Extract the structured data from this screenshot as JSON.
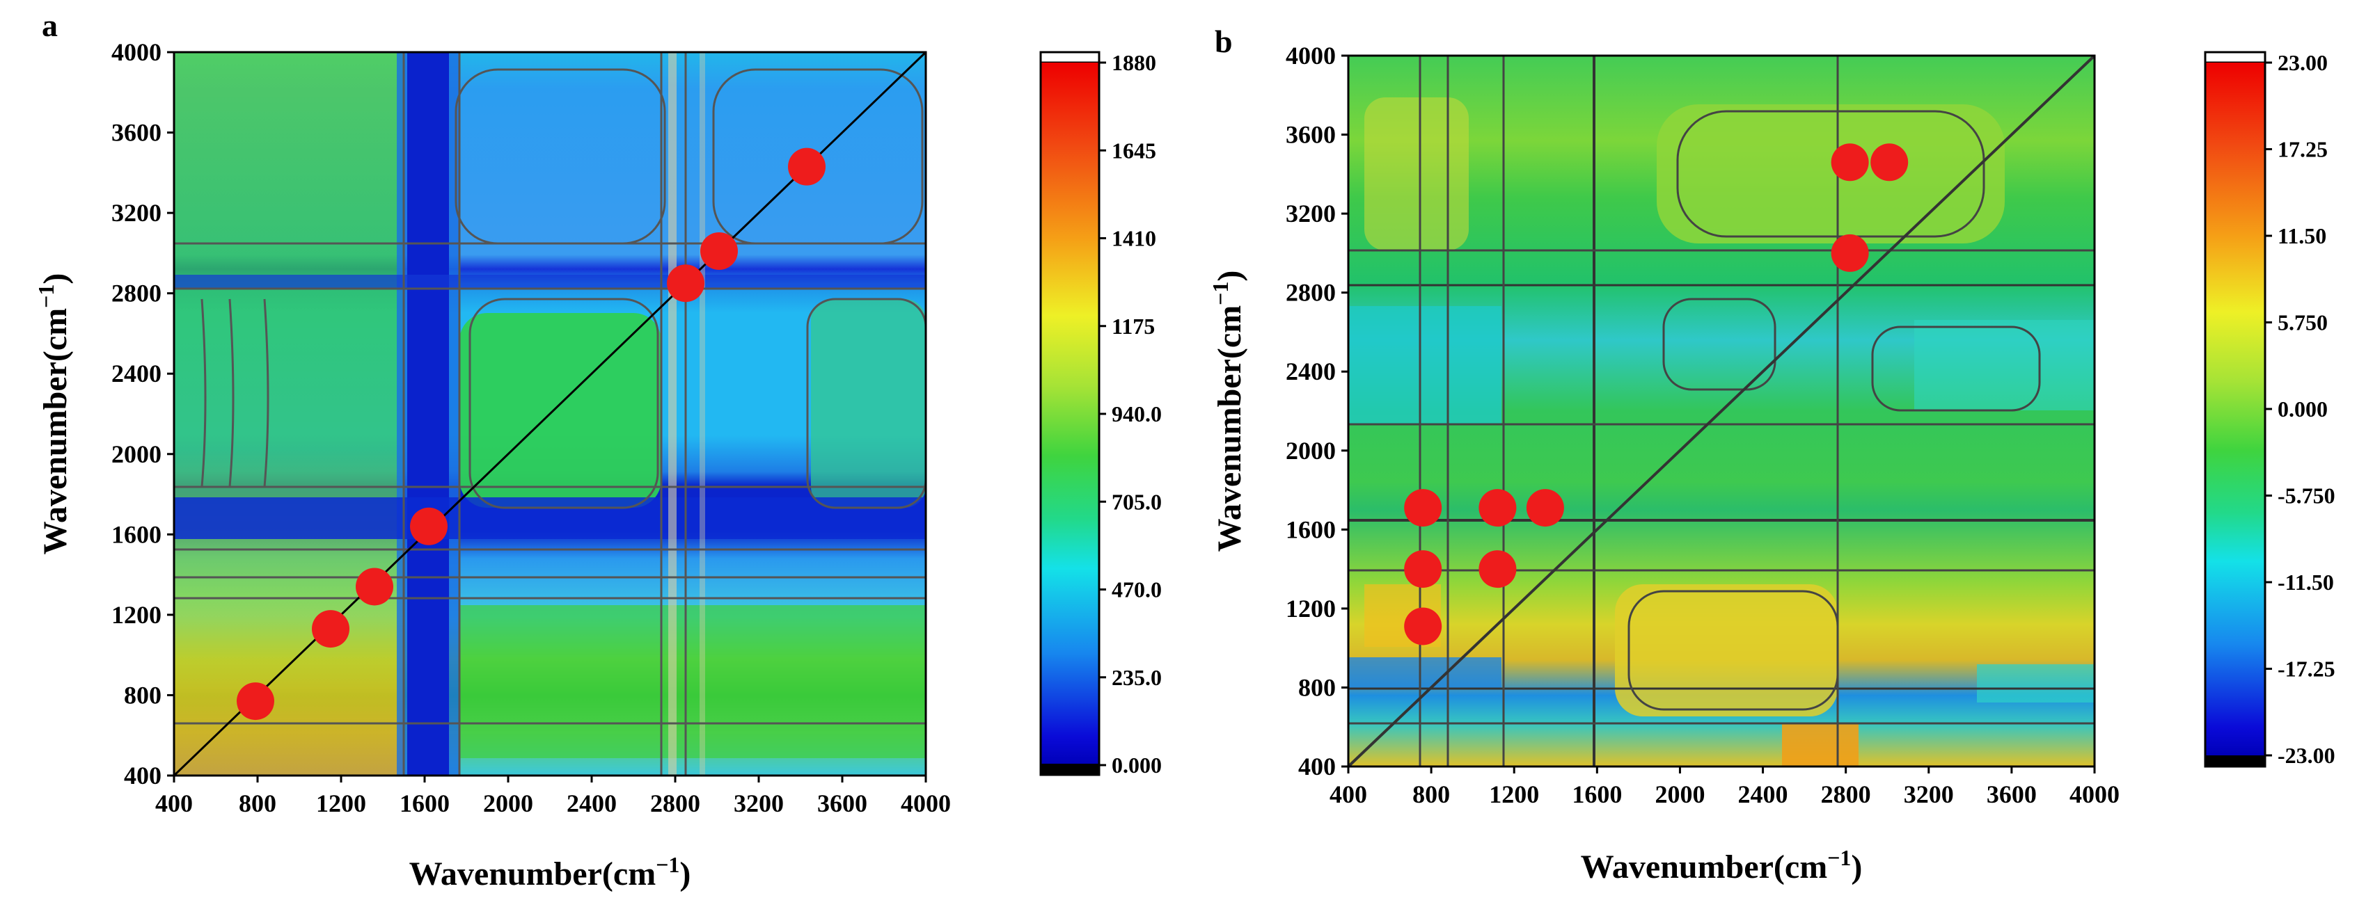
{
  "figure": {
    "panels": [
      {
        "letter": "a",
        "xlabel": "Wavenumber(cm",
        "ylabel": "Wavenumber(cm",
        "label_superscript": "−1",
        "label_close": ")",
        "colorbar_ticks": [
          "1880",
          "1645",
          "1410",
          "1175",
          "940.0",
          "705.0",
          "470.0",
          "235.0",
          "0.000"
        ]
      },
      {
        "letter": "b",
        "xlabel": "Wavenumber(cm",
        "ylabel": "Wavenumber(cm",
        "label_superscript": "−1",
        "label_close": ")",
        "colorbar_ticks": [
          "23.00",
          "17.25",
          "11.50",
          "5.750",
          "0.000",
          "-5.750",
          "-11.50",
          "-17.25",
          "-23.00"
        ]
      }
    ]
  },
  "chart_data": [
    {
      "type": "heatmap",
      "title": "a",
      "subtype": "2D correlation synchronous map",
      "xlabel": "Wavenumber(cm−1)",
      "ylabel": "Wavenumber(cm−1)",
      "xlim": [
        400,
        4000
      ],
      "ylim": [
        400,
        4000
      ],
      "xticks": [
        400,
        800,
        1200,
        1600,
        2000,
        2400,
        2800,
        3200,
        3600,
        4000
      ],
      "yticks": [
        400,
        800,
        1200,
        1600,
        2000,
        2400,
        2800,
        3200,
        3600,
        4000
      ],
      "colorbar": {
        "min": 0.0,
        "max": 1880,
        "ticks": [
          0.0,
          235.0,
          470.0,
          705.0,
          940.0,
          1175,
          1410,
          1645,
          1880
        ]
      },
      "diagonal_line": true,
      "peaks": [
        {
          "x": 790,
          "y": 770
        },
        {
          "x": 1150,
          "y": 1130
        },
        {
          "x": 1360,
          "y": 1340
        },
        {
          "x": 1620,
          "y": 1640
        },
        {
          "x": 2850,
          "y": 2850
        },
        {
          "x": 3010,
          "y": 3010
        },
        {
          "x": 3430,
          "y": 3430
        }
      ],
      "peak_color": "#ee1c1c"
    },
    {
      "type": "heatmap",
      "title": "b",
      "subtype": "2D correlation asynchronous map",
      "xlabel": "Wavenumber(cm−1)",
      "ylabel": "Wavenumber(cm−1)",
      "xlim": [
        400,
        4000
      ],
      "ylim": [
        400,
        4000
      ],
      "xticks": [
        400,
        800,
        1200,
        1600,
        2000,
        2400,
        2800,
        3200,
        3600,
        4000
      ],
      "yticks": [
        400,
        800,
        1200,
        1600,
        2000,
        2400,
        2800,
        3200,
        3600,
        4000
      ],
      "colorbar": {
        "min": -23.0,
        "max": 23.0,
        "ticks": [
          -23.0,
          -17.25,
          -11.5,
          -5.75,
          0.0,
          5.75,
          11.5,
          17.25,
          23.0
        ]
      },
      "diagonal_line": true,
      "peaks": [
        {
          "x": 760,
          "y": 1710
        },
        {
          "x": 1120,
          "y": 1710
        },
        {
          "x": 1350,
          "y": 1710
        },
        {
          "x": 760,
          "y": 1400
        },
        {
          "x": 1120,
          "y": 1400
        },
        {
          "x": 760,
          "y": 1110
        },
        {
          "x": 2820,
          "y": 3460
        },
        {
          "x": 3010,
          "y": 3460
        },
        {
          "x": 2820,
          "y": 3000
        }
      ],
      "peak_color": "#ee1c1c"
    }
  ]
}
